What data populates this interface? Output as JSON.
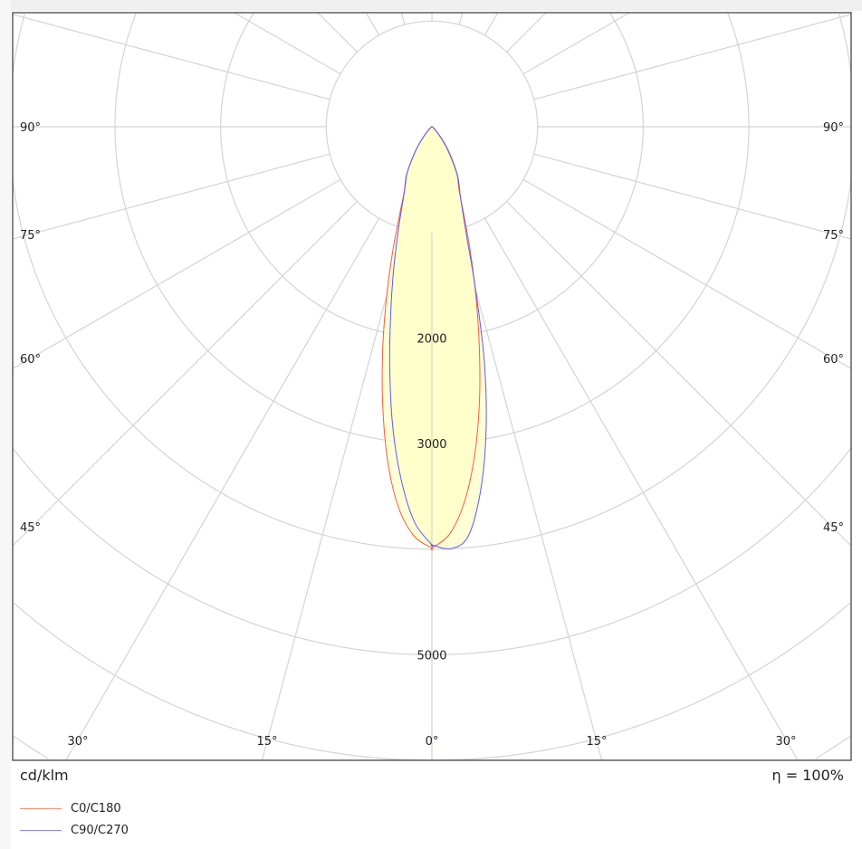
{
  "chart_data": {
    "type": "polar",
    "unit_label": "cd/klm",
    "efficiency_label": "η = 100%",
    "radial_tick_labels": [
      "2000",
      "3000",
      "5000"
    ],
    "radial_ticks": [
      1000,
      2000,
      3000,
      4000,
      5000,
      6000,
      7000,
      8000,
      9000
    ],
    "angle_labels_bottom": [
      "30°",
      "15°",
      "0°",
      "15°",
      "30°"
    ],
    "angle_labels_side": [
      "90°",
      "75°",
      "60°",
      "45°"
    ],
    "grid": true,
    "legend_position": "bottom-left",
    "fill_color": "#ffffc8",
    "angles_deg": [
      0,
      2.5,
      5,
      7.5,
      10,
      12.5,
      15,
      17.5,
      20,
      22.5,
      25,
      27.5,
      30,
      35,
      40,
      50,
      60,
      90
    ],
    "series": [
      {
        "name": "C0/C180",
        "color": "#ff5a3c",
        "left_C180": [
          3990,
          3880,
          3620,
          3200,
          2680,
          2150,
          1650,
          1230,
          900,
          700,
          600,
          530,
          420,
          250,
          120,
          30,
          0,
          0
        ],
        "right_C0": [
          3990,
          3860,
          3560,
          3120,
          2600,
          2060,
          1580,
          1180,
          880,
          690,
          590,
          520,
          410,
          240,
          110,
          25,
          0,
          0
        ]
      },
      {
        "name": "C90/C270",
        "color": "#5a5aff",
        "left_C270": [
          3960,
          3750,
          3350,
          2850,
          2300,
          1800,
          1400,
          1080,
          850,
          690,
          590,
          520,
          420,
          250,
          120,
          30,
          0,
          0
        ],
        "right_C90": [
          3960,
          4000,
          3900,
          3500,
          2950,
          2300,
          1600,
          1100,
          850,
          700,
          610,
          530,
          430,
          260,
          130,
          35,
          0,
          0
        ]
      }
    ]
  }
}
